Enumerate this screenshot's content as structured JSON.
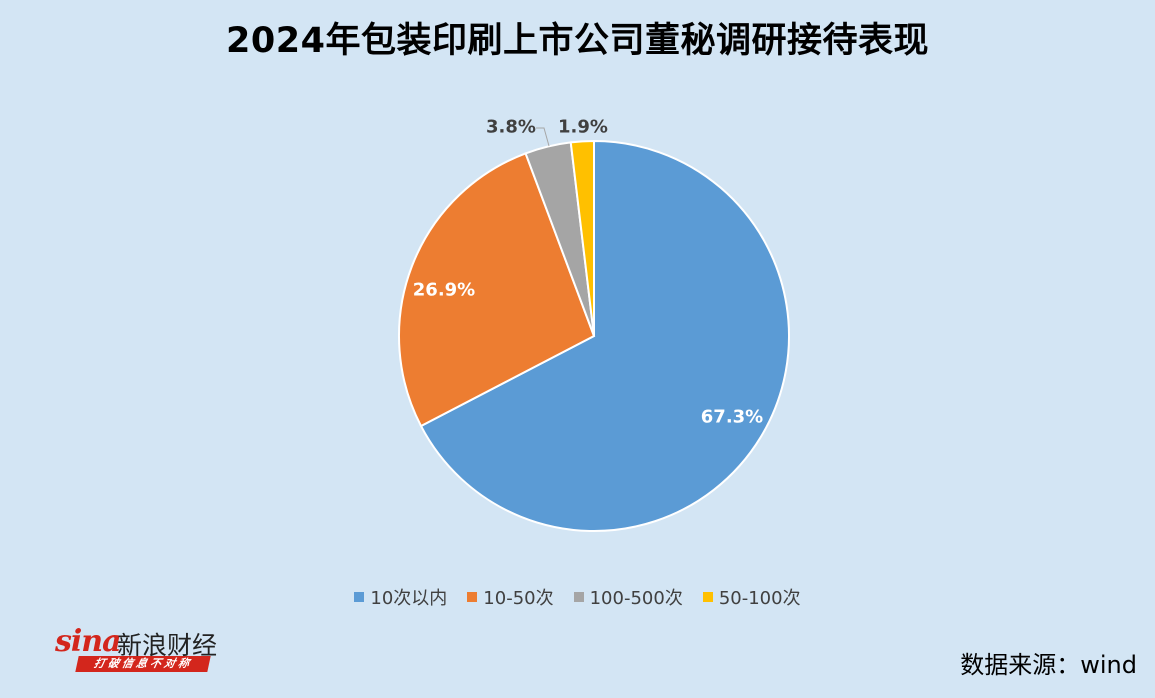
{
  "header": {
    "title": "2024年包装印刷上市公司董秘调研接待表现"
  },
  "chart_data": {
    "type": "pie",
    "title": "2024年包装印刷上市公司董秘调研接待表现",
    "categories": [
      "10次以内",
      "10-50次",
      "100-500次",
      "50-100次"
    ],
    "values": [
      67.3,
      26.9,
      3.8,
      1.9
    ],
    "labels": [
      "67.3%",
      "26.9%",
      "3.8%",
      "1.9%"
    ],
    "colors": [
      "#5b9bd5",
      "#ed7d31",
      "#a5a5a5",
      "#ffc000"
    ],
    "start_angle_deg": 0,
    "direction": "clockwise",
    "legend_position": "bottom"
  },
  "footer": {
    "logo_word": "sina",
    "logo_cn": "新浪财经",
    "logo_slogan": "打破信息不对称",
    "source": "数据来源：wind"
  }
}
